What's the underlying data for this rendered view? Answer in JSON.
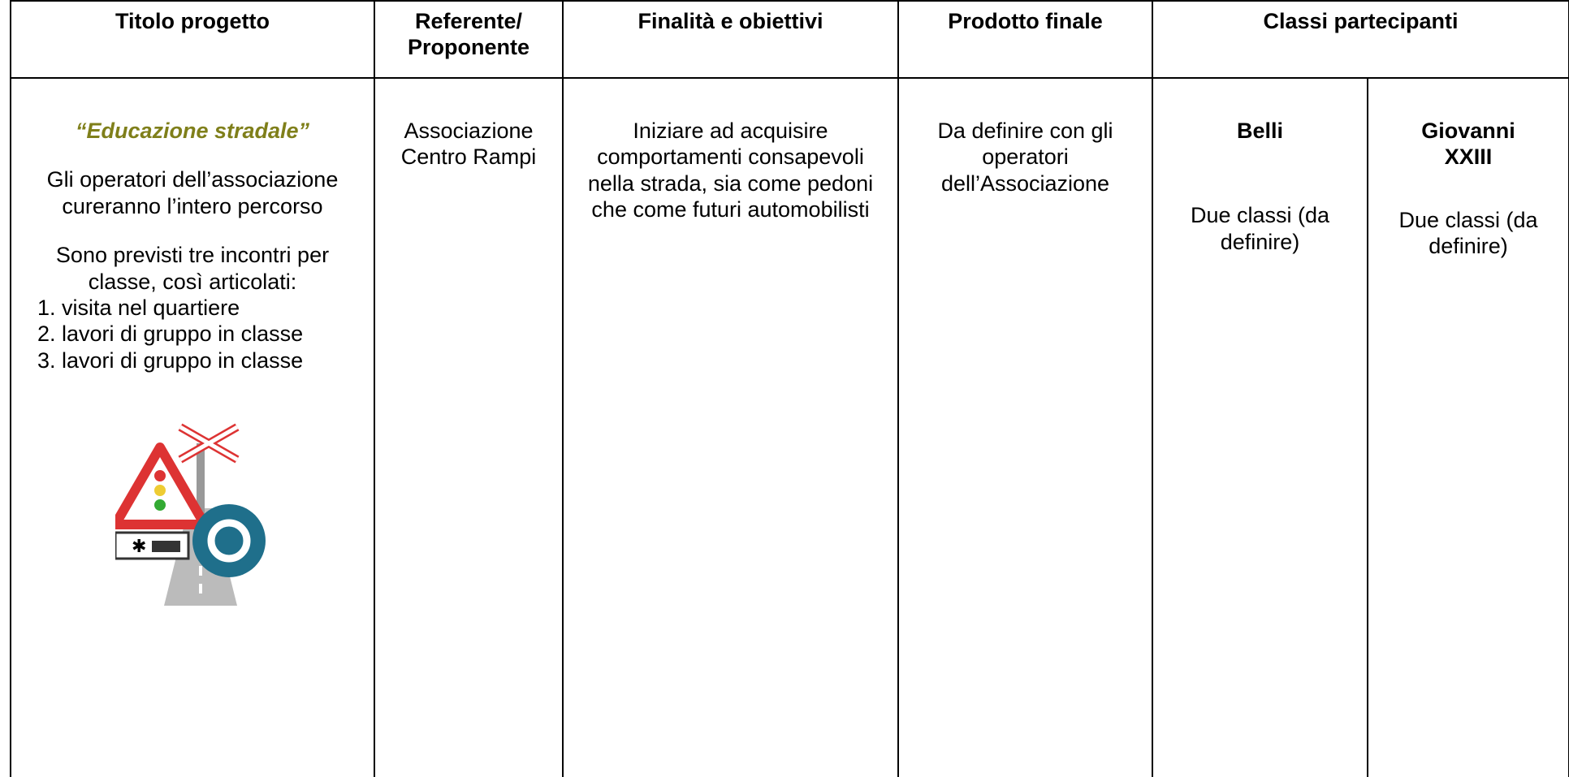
{
  "table": {
    "headers": [
      "Titolo progetto",
      "Referente/ Proponente",
      "Finalità e obiettivi",
      "Prodotto finale",
      "Classi partecipanti"
    ],
    "row": {
      "title": "“Educazione stradale”",
      "intro": "Gli operatori dell’associazione cureranno l’intero percorso",
      "plan": "Sono previsti tre incontri per classe, così articolati:",
      "steps": [
        "visita nel quartiere",
        "lavori di gruppo in classe",
        "lavori di gruppo in classe"
      ],
      "referente": "Associazione Centro Rampi",
      "finalita": "Iniziare ad acquisire comportamenti consapevoli nella strada, sia come pedoni che come futuri automobilisti",
      "prodotto": "Da definire con gli operatori dell’Associazione",
      "schools": [
        {
          "name": "Belli",
          "classes": "Due classi (da definire)"
        },
        {
          "name": "Giovanni XXIII",
          "classes": "Due classi (da definire)"
        }
      ]
    }
  }
}
